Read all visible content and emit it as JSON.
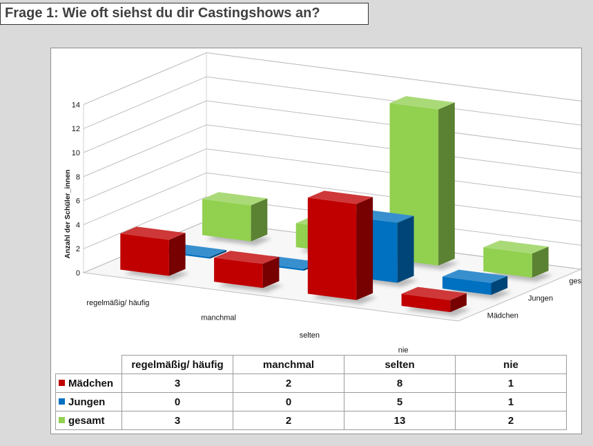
{
  "page": {
    "title": "Frage 1: Wie oft siehst du dir Castingshows an?"
  },
  "chart_data": {
    "type": "bar",
    "variant": "3d-column",
    "title": "",
    "ylabel": "Anzahl der Schüler_innen",
    "xlabel": "",
    "ylim": [
      0,
      14
    ],
    "yticks": [
      0,
      2,
      4,
      6,
      8,
      10,
      12,
      14
    ],
    "grid": true,
    "categories": [
      "regelmäßig/ häufig",
      "manchmal",
      "selten",
      "nie"
    ],
    "series": [
      {
        "name": "Mädchen",
        "values": [
          3,
          2,
          8,
          1
        ],
        "color": "#c00000"
      },
      {
        "name": "Jungen",
        "values": [
          0,
          0,
          5,
          1
        ],
        "color": "#0070c0"
      },
      {
        "name": "gesamt",
        "values": [
          3,
          2,
          13,
          2
        ],
        "color": "#92d050"
      }
    ],
    "legend": "data table below chart"
  },
  "table": {
    "headers": [
      "regelmäßig/ häufig",
      "manchmal",
      "selten",
      "nie"
    ],
    "rows": [
      {
        "name": "Mädchen",
        "values": [
          "3",
          "2",
          "8",
          "1"
        ]
      },
      {
        "name": "Jungen",
        "values": [
          "0",
          "0",
          "5",
          "1"
        ]
      },
      {
        "name": "gesamt",
        "values": [
          "3",
          "2",
          "13",
          "2"
        ]
      }
    ]
  }
}
